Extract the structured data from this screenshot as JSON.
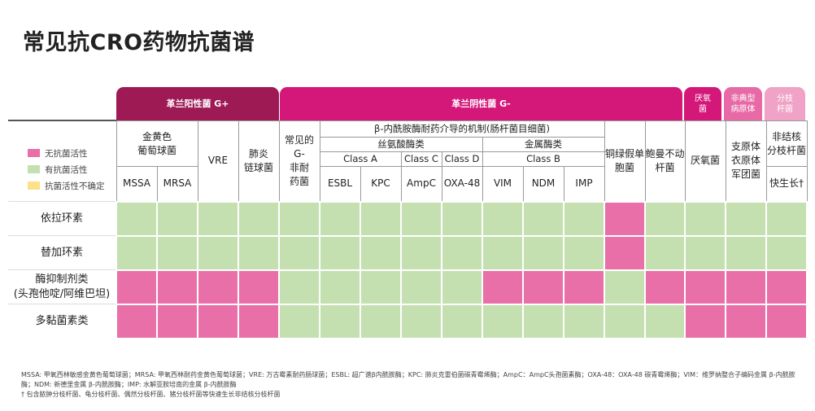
{
  "title": "常见抗CRO药物抗菌谱",
  "colors": {
    "no_activity": "#e86fa7",
    "activity": "#c5e0b0",
    "uncertain": "#fde08a",
    "gram_pos": "#9e1a55",
    "gram_neg": "#d4187a",
    "anaerobe": "#d4187a",
    "atypical": "#e76aa6",
    "mycobacteria": "#f0a3c6"
  },
  "groups": {
    "gram_pos": "革兰阳性菌 G+",
    "gram_neg": "革兰阴性菌 G-",
    "anaerobe": "厌氧\n菌",
    "atypical": "非典型\n病原体",
    "mycobacteria": "分枝\n杆菌"
  },
  "legend": {
    "no_activity": "无抗菌活性",
    "activity": "有抗菌活性",
    "uncertain": "抗菌活性不确定"
  },
  "headers": {
    "staph": "金黄色\n葡萄球菌",
    "mssa": "MSSA",
    "mrsa": "MRSA",
    "vre": "VRE",
    "strep": "肺炎\n链球菌",
    "common_gneg": "常见的\nG-\n非耐\n药菌",
    "beta_lactamase": "β-内酰胺酶耐药介导的机制(肠杆菌目细菌)",
    "serine": "丝氨酸酶类",
    "metallo": "金属酶类",
    "class_a": "Class A",
    "class_c": "Class C",
    "class_d": "Class D",
    "class_b": "Class B",
    "esbl": "ESBL",
    "kpc": "KPC",
    "ampc": "AmpC",
    "oxa48": "OXA-48",
    "vim": "VIM",
    "ndm": "NDM",
    "imp": "IMP",
    "pseudomonas": "铜绿假单\n胞菌",
    "acinetobacter": "鲍曼不动\n杆菌",
    "anaerobe": "厌氧菌",
    "atypical": "支原体\n衣原体\n军团菌",
    "ntm": "非结核\n分枝杆菌",
    "rapid": "快生长†"
  },
  "rows": [
    {
      "label": "依拉环素",
      "cells": [
        "y",
        "y",
        "y",
        "y",
        "y",
        "y",
        "y",
        "y",
        "y",
        "y",
        "y",
        "y",
        "n",
        "y",
        "y",
        "y",
        "y"
      ]
    },
    {
      "label": "替加环素",
      "cells": [
        "y",
        "y",
        "y",
        "y",
        "y",
        "y",
        "y",
        "y",
        "y",
        "y",
        "y",
        "y",
        "n",
        "y",
        "y",
        "y",
        "y"
      ]
    },
    {
      "label": "酶抑制剂类\n(头孢他啶/阿维巴坦)",
      "cells": [
        "n",
        "n",
        "n",
        "n",
        "y",
        "y",
        "y",
        "y",
        "y",
        "n",
        "n",
        "n",
        "y",
        "n",
        "n",
        "n",
        "n"
      ]
    },
    {
      "label": "多黏菌素类",
      "cells": [
        "n",
        "n",
        "n",
        "n",
        "y",
        "y",
        "y",
        "y",
        "y",
        "y",
        "y",
        "y",
        "y",
        "y",
        "n",
        "n",
        "n"
      ]
    }
  ],
  "footnotes": [
    "MSSA: 甲氧西林敏感金黄色葡萄球菌；MRSA: 甲氧西林耐药金黄色葡萄球菌；VRE: 万古霉素耐药肠球菌；ESBL: 超广谱β内酰胺酶；KPC: 肺炎克雷伯菌碳青霉烯酶；AmpC：AmpC头孢菌素酶；OXA-48：OXA-48 碳青霉烯酶；VIM：维罗纳整合子编码金属 β-内酰胺酶；NDM: 新德里金属 β-内酰胺酶；IMP: 水解亚胺培南的金属 β-内酰胺酶",
    "† 包含脓肿分枝杆菌、龟分枝杆菌、偶然分枝杆菌、猪分枝杆菌等快速生长非结核分枝杆菌"
  ]
}
